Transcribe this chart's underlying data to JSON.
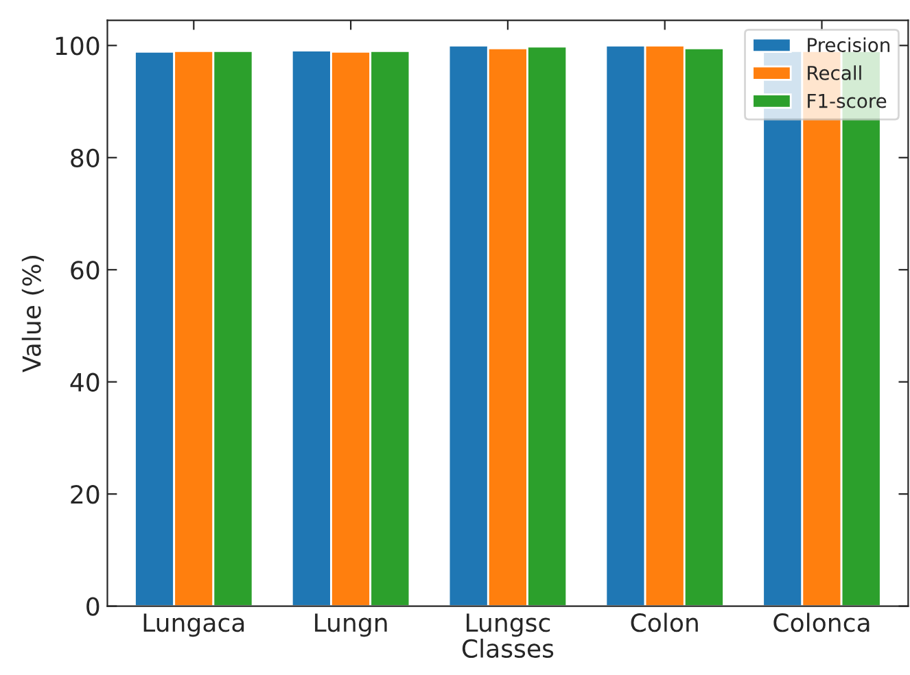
{
  "chart_data": {
    "type": "bar",
    "xlabel": "Classes",
    "ylabel": "Value (%)",
    "categories": [
      "Lungaca",
      "Lungn",
      "Lungsc",
      "Colon",
      "Colonca"
    ],
    "series": [
      {
        "name": "Precision",
        "color": "#1f77b4",
        "values": [
          98.9,
          99.1,
          100,
          100,
          99.0
        ]
      },
      {
        "name": "Recall",
        "color": "#ff7f0e",
        "values": [
          99.0,
          98.9,
          99.5,
          100,
          99.0
        ]
      },
      {
        "name": "F1-score",
        "color": "#2ca02c",
        "values": [
          99.0,
          99.0,
          99.8,
          99.5,
          99.0
        ]
      }
    ],
    "ylim": [
      0,
      104.5
    ],
    "yticks": [
      0,
      20,
      40,
      60,
      80,
      100
    ],
    "legend": "top right",
    "grid": false
  }
}
